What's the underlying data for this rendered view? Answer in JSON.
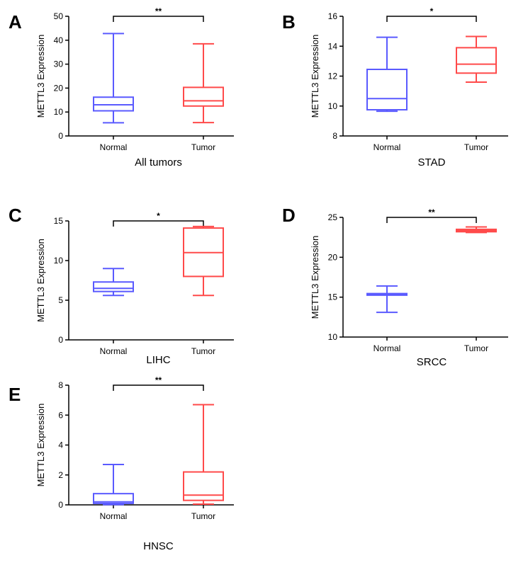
{
  "colors": {
    "normal": "#5a5aff",
    "tumor": "#ff4a4a",
    "axis": "#000000"
  },
  "chart_data": [
    {
      "type": "box",
      "panel_label": "A",
      "title": "All tumors",
      "ylabel": "METTL3 Expression",
      "ylim": [
        0,
        50
      ],
      "yticks": [
        0,
        10,
        20,
        30,
        40,
        50
      ],
      "categories": [
        "Normal",
        "Tumor"
      ],
      "significance": "**",
      "boxes": [
        {
          "category": "Normal",
          "min": 5.5,
          "q1": 10.5,
          "median": 13.0,
          "q3": 16.2,
          "max": 42.8
        },
        {
          "category": "Tumor",
          "min": 5.6,
          "q1": 12.5,
          "median": 14.7,
          "q3": 20.3,
          "max": 38.5
        }
      ]
    },
    {
      "type": "box",
      "panel_label": "B",
      "title": "STAD",
      "ylabel": "METTL3 Expression",
      "ylim": [
        8,
        16
      ],
      "yticks": [
        8,
        10,
        12,
        14,
        16
      ],
      "categories": [
        "Normal",
        "Tumor"
      ],
      "significance": "*",
      "boxes": [
        {
          "category": "Normal",
          "min": 9.65,
          "q1": 9.75,
          "median": 10.5,
          "q3": 12.45,
          "max": 14.6
        },
        {
          "category": "Tumor",
          "min": 11.6,
          "q1": 12.2,
          "median": 12.8,
          "q3": 13.9,
          "max": 14.65
        }
      ]
    },
    {
      "type": "box",
      "panel_label": "C",
      "title": "LIHC",
      "ylabel": "METTL3 Expression",
      "ylim": [
        0,
        15
      ],
      "yticks": [
        0,
        5,
        10,
        15
      ],
      "categories": [
        "Normal",
        "Tumor"
      ],
      "significance": "*",
      "boxes": [
        {
          "category": "Normal",
          "min": 5.6,
          "q1": 6.1,
          "median": 6.5,
          "q3": 7.3,
          "max": 9.0
        },
        {
          "category": "Tumor",
          "min": 5.6,
          "q1": 8.0,
          "median": 11.0,
          "q3": 14.1,
          "max": 14.3
        }
      ]
    },
    {
      "type": "box",
      "panel_label": "D",
      "title": "SRCC",
      "ylabel": "METTL3 Expression",
      "ylim": [
        10,
        25
      ],
      "yticks": [
        10,
        15,
        20,
        25
      ],
      "categories": [
        "Normal",
        "Tumor"
      ],
      "significance": "**",
      "boxes": [
        {
          "category": "Normal",
          "min": 13.1,
          "q1": 15.25,
          "median": 15.35,
          "q3": 15.45,
          "max": 16.4
        },
        {
          "category": "Tumor",
          "min": 23.1,
          "q1": 23.2,
          "median": 23.35,
          "q3": 23.5,
          "max": 23.8
        }
      ]
    },
    {
      "type": "box",
      "panel_label": "E",
      "title": "HNSC",
      "ylabel": "METTL3 Expression",
      "ylim": [
        0,
        8
      ],
      "yticks": [
        0,
        2,
        4,
        6,
        8
      ],
      "categories": [
        "Normal",
        "Tumor"
      ],
      "significance": "**",
      "boxes": [
        {
          "category": "Normal",
          "min": 0.02,
          "q1": 0.1,
          "median": 0.2,
          "q3": 0.75,
          "max": 2.7
        },
        {
          "category": "Tumor",
          "min": 0.05,
          "q1": 0.3,
          "median": 0.65,
          "q3": 2.2,
          "max": 6.7
        }
      ]
    }
  ]
}
